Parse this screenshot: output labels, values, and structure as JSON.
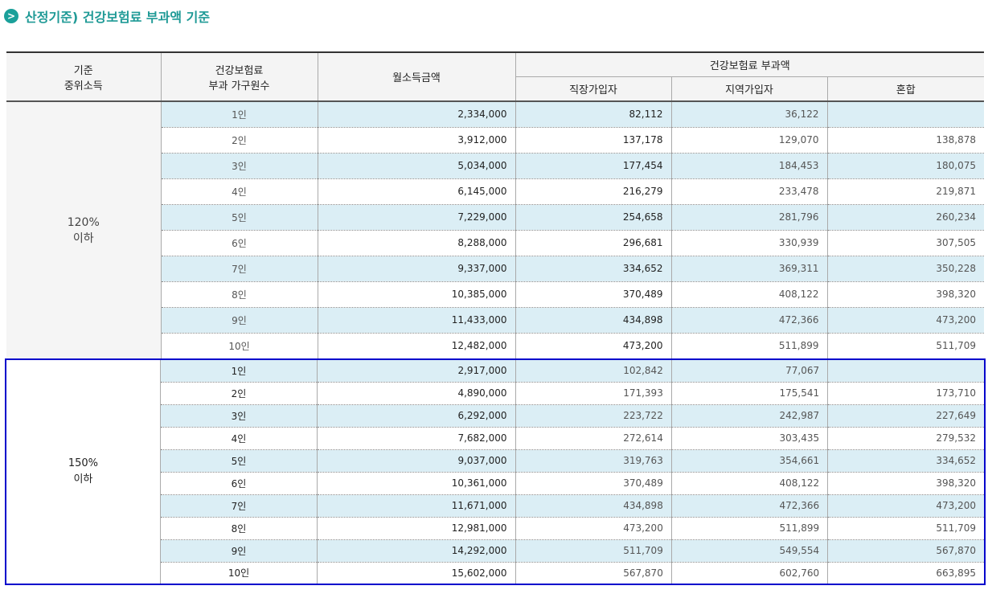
{
  "title": "산정기준) 건강보험료 부과액 기준",
  "table": {
    "columns": [
      [
        "기준",
        "중위소득"
      ],
      [
        "건강보험료",
        "부과 가구원수"
      ],
      [
        "월소득금액"
      ]
    ],
    "group_header": "건강보험료 부과액",
    "sub_columns": [
      "직장가입자",
      "지역가입자",
      "혼합"
    ],
    "groups": [
      {
        "label": [
          "120%",
          "이하"
        ],
        "rows": [
          [
            "1인",
            "2,334,000",
            "82,112",
            "36,122",
            null
          ],
          [
            "2인",
            "3,912,000",
            "137,178",
            "129,070",
            "138,878"
          ],
          [
            "3인",
            "5,034,000",
            "177,454",
            "184,453",
            "180,075"
          ],
          [
            "4인",
            "6,145,000",
            "216,279",
            "233,478",
            "219,871"
          ],
          [
            "5인",
            "7,229,000",
            "254,658",
            "281,796",
            "260,234"
          ],
          [
            "6인",
            "8,288,000",
            "296,681",
            "330,939",
            "307,505"
          ],
          [
            "7인",
            "9,337,000",
            "334,652",
            "369,311",
            "350,228"
          ],
          [
            "8인",
            "10,385,000",
            "370,489",
            "408,122",
            "398,320"
          ],
          [
            "9인",
            "11,433,000",
            "434,898",
            "472,366",
            "473,200"
          ],
          [
            "10인",
            "12,482,000",
            "473,200",
            "511,899",
            "511,709"
          ]
        ]
      },
      {
        "label": [
          "150%",
          "이하"
        ],
        "rows": [
          [
            "1인",
            "2,917,000",
            "102,842",
            "77,067",
            null
          ],
          [
            "2인",
            "4,890,000",
            "171,393",
            "175,541",
            "173,710"
          ],
          [
            "3인",
            "6,292,000",
            "223,722",
            "242,987",
            "227,649"
          ],
          [
            "4인",
            "7,682,000",
            "272,614",
            "303,435",
            "279,532"
          ],
          [
            "5인",
            "9,037,000",
            "319,763",
            "354,661",
            "334,652"
          ],
          [
            "6인",
            "10,361,000",
            "370,489",
            "408,122",
            "398,320"
          ],
          [
            "7인",
            "11,671,000",
            "434,898",
            "472,366",
            "473,200"
          ],
          [
            "8인",
            "12,981,000",
            "473,200",
            "511,899",
            "511,709"
          ],
          [
            "9인",
            "14,292,000",
            "511,709",
            "549,554",
            "567,870"
          ],
          [
            "10인",
            "15,602,000",
            "567,870",
            "602,760",
            "663,895"
          ]
        ]
      }
    ]
  }
}
